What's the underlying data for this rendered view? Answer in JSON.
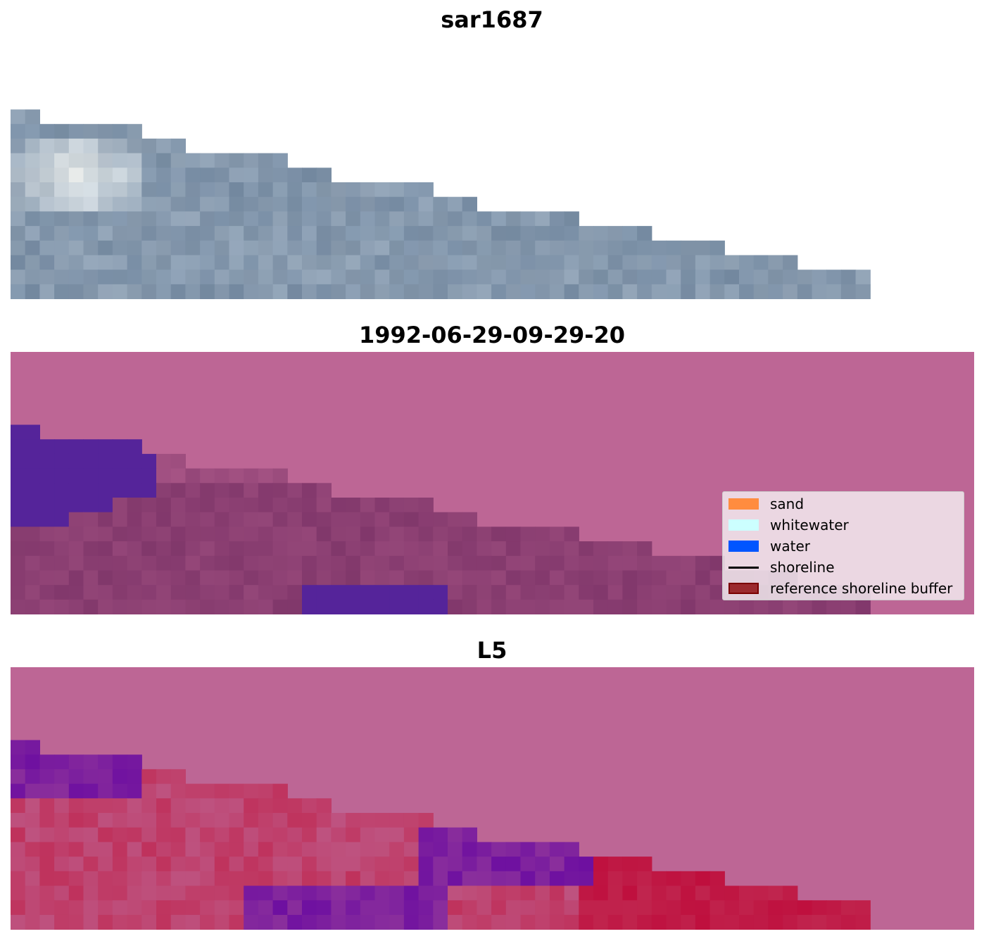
{
  "panels": [
    {
      "title": "sar1687",
      "image": "rgb-satellite-crop"
    },
    {
      "title": "1992-06-29-09-29-20",
      "image": "classified-overlay"
    },
    {
      "title": "L5",
      "image": "probability-overlay"
    }
  ],
  "legend": {
    "items": [
      {
        "label": "sand",
        "kind": "patch",
        "color": "#ff8c3f"
      },
      {
        "label": "whitewater",
        "kind": "patch",
        "color": "#ccffff"
      },
      {
        "label": "water",
        "kind": "patch",
        "color": "#0055ff"
      },
      {
        "label": "shoreline",
        "kind": "line",
        "color": "#000000"
      },
      {
        "label": "reference shoreline buffer",
        "kind": "patch",
        "color": "#9b2a2e",
        "edge": "#7a0000"
      }
    ]
  },
  "colors": {
    "background_magenta": "#bd6695",
    "overlay_dark": "#7e3569",
    "overlay_purple": "#55249a",
    "water_grey_blue": "#7a8fa6",
    "whitewater_white": "#f4f7f5",
    "prob_red": "#c0254e",
    "prob_violet": "#6e10a0"
  }
}
